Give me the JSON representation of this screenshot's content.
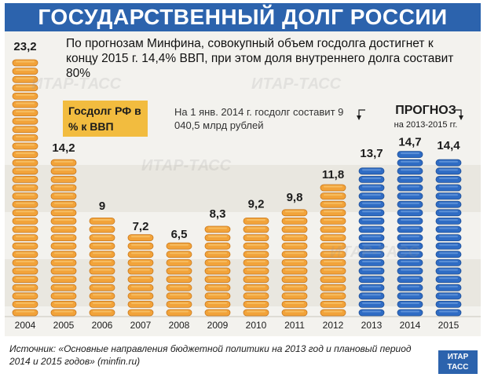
{
  "title": "ГОСУДАРСТВЕННЫЙ ДОЛГ РОССИИ",
  "summary": "По прогнозам Минфина, совокупный объем госдолга достигнет к концу 2015 г. 14,4% ВВП, при этом доля внутреннего долга составит 80%",
  "legend_label": "Госдолг РФ в % к ВВП",
  "debt_note": "На 1 янв. 2014 г. госдолг составит 9 040,5 млрд рублей",
  "forecast": {
    "title": "ПРОГНОЗ",
    "subtitle": "на 2013-2015 гг."
  },
  "source": "Источник: «Основные направления бюджетной политики на 2013 год и плановый период 2014 и 2015 годов» (minfin.ru)",
  "logo": "ИТАР ТАСС",
  "watermark": "ИТАР-ТАСС",
  "colors": {
    "header": "#2c63ad",
    "actual_coin": "#f2a33a",
    "forecast_coin": "#2f6cc4",
    "legend_box": "#f2bc3f"
  },
  "chart_data": {
    "type": "bar",
    "categories": [
      "2004",
      "2005",
      "2006",
      "2007",
      "2008",
      "2009",
      "2010",
      "2011",
      "2012",
      "2013",
      "2014",
      "2015"
    ],
    "values": [
      23.2,
      14.2,
      9,
      7.2,
      6.5,
      8.3,
      9.2,
      9.8,
      11.8,
      13.7,
      14.7,
      14.4
    ],
    "value_labels": [
      "23,2",
      "14,2",
      "9",
      "7,2",
      "6,5",
      "8,3",
      "9,2",
      "9,8",
      "11,8",
      "13,7",
      "14,7",
      "14,4"
    ],
    "forecast_categories": [
      "2013",
      "2014",
      "2015"
    ],
    "title": "Госдолг РФ в % к ВВП",
    "xlabel": "",
    "ylabel": "",
    "ylim": [
      0,
      23.2
    ],
    "grid": false
  }
}
